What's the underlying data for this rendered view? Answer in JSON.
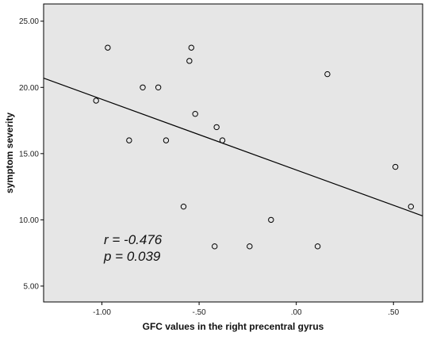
{
  "chart_data": {
    "type": "scatter",
    "title": "",
    "xlabel": "GFC values in the right precentral gyrus",
    "ylabel": "symptom severity",
    "xlim": [
      -1.3,
      0.65
    ],
    "ylim": [
      3.8,
      26.3
    ],
    "x_ticks": [
      -1.0,
      -0.5,
      0.0,
      0.5
    ],
    "x_tick_labels": [
      "-1.00",
      "-.50",
      ".00",
      ".50"
    ],
    "y_ticks": [
      5,
      10,
      15,
      20,
      25
    ],
    "y_tick_labels": [
      "5.00",
      "10.00",
      "15.00",
      "20.00",
      "25.00"
    ],
    "grid": false,
    "points": [
      {
        "x": -1.03,
        "y": 19
      },
      {
        "x": -0.97,
        "y": 23
      },
      {
        "x": -0.86,
        "y": 16
      },
      {
        "x": -0.79,
        "y": 20
      },
      {
        "x": -0.71,
        "y": 20
      },
      {
        "x": -0.67,
        "y": 16
      },
      {
        "x": -0.58,
        "y": 11
      },
      {
        "x": -0.55,
        "y": 22
      },
      {
        "x": -0.54,
        "y": 23
      },
      {
        "x": -0.52,
        "y": 18
      },
      {
        "x": -0.42,
        "y": 8
      },
      {
        "x": -0.41,
        "y": 17
      },
      {
        "x": -0.38,
        "y": 16
      },
      {
        "x": -0.24,
        "y": 8
      },
      {
        "x": -0.13,
        "y": 10
      },
      {
        "x": 0.11,
        "y": 8
      },
      {
        "x": 0.16,
        "y": 21
      },
      {
        "x": 0.51,
        "y": 14
      },
      {
        "x": 0.59,
        "y": 11
      }
    ],
    "fit_line": {
      "x": [
        -1.3,
        0.65
      ],
      "y": [
        20.7,
        10.3
      ]
    },
    "annotations": [
      "r = -0.476",
      "p = 0.039"
    ],
    "colors": {
      "plot_background": "#e6e6e6",
      "marker_edge": "#000000",
      "marker_fill": "#e6e6e6",
      "fit_line": "#000000"
    }
  }
}
